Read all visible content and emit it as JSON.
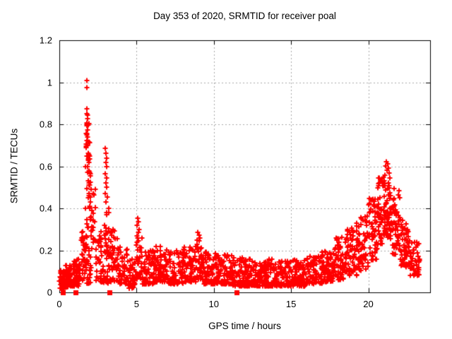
{
  "title": "Day 353 of 2020, SRMTID for receiver poal",
  "chart_data": {
    "type": "scatter",
    "title": "Day 353 of 2020, SRMTID for receiver poal",
    "xlabel": "GPS time / hours",
    "ylabel": "SRMTID / TECUs",
    "xlim": [
      0,
      24
    ],
    "ylim": [
      0,
      1.2
    ],
    "x_ticks": [
      0,
      5,
      10,
      15,
      20
    ],
    "y_ticks": [
      0,
      0.2,
      0.4,
      0.6,
      0.8,
      1,
      1.2
    ],
    "y_tick_labels": [
      "0",
      "0.2",
      "0.4",
      "0.6",
      "0.8",
      "1",
      "1.2"
    ],
    "x_tick_labels": [
      "0",
      "5",
      "10",
      "15",
      "20"
    ],
    "grid": true,
    "legend_position": "none",
    "background_color": "#ffffff",
    "border_color": "#000000",
    "grid_color": "#a8a8a8",
    "marker_color": "#ff0000",
    "series": [
      {
        "name": "srmtid-points",
        "marker": "plus",
        "color": "#ff0000",
        "description": "Dense scatter (~2000 pts) of SRMTID vs GPS time. Baseline ~0.05-0.15 TECUs all day; large spike to 1.01 near 1.8 h; secondary spike to 0.69 near 3.0 h; minor spike to 0.35 near 5.1 h; bump to 0.29 near 9 h; broad evening enhancement rising from 17 h to peak 0.62 near 21.2 h, decaying to ~0.12 by 23.3 h.",
        "feature_points": [
          [
            1.78,
            1.01
          ],
          [
            1.8,
            0.975
          ],
          [
            1.79,
            0.875
          ],
          [
            1.76,
            0.852
          ],
          [
            1.82,
            0.845
          ],
          [
            1.78,
            0.808
          ],
          [
            1.8,
            0.8
          ],
          [
            1.77,
            0.792
          ],
          [
            1.81,
            0.772
          ],
          [
            1.75,
            0.756
          ],
          [
            1.79,
            0.748
          ],
          [
            1.76,
            0.722
          ],
          [
            1.83,
            0.7
          ],
          [
            1.74,
            0.688
          ],
          [
            1.86,
            0.662
          ],
          [
            1.9,
            0.655
          ],
          [
            1.95,
            0.648
          ],
          [
            1.88,
            0.635
          ],
          [
            1.92,
            0.618
          ],
          [
            1.85,
            0.6
          ],
          [
            1.97,
            0.57
          ],
          [
            2.02,
            0.555
          ],
          [
            1.89,
            0.532
          ],
          [
            1.94,
            0.51
          ],
          [
            2.05,
            0.49
          ],
          [
            1.91,
            0.47
          ],
          [
            1.87,
            0.45
          ],
          [
            2.0,
            0.43
          ],
          [
            1.96,
            0.41
          ],
          [
            2.08,
            0.39
          ],
          [
            2.98,
            0.685
          ],
          [
            3.02,
            0.662
          ],
          [
            3.06,
            0.64
          ],
          [
            3.0,
            0.618
          ],
          [
            3.04,
            0.6
          ],
          [
            2.96,
            0.565
          ],
          [
            3.08,
            0.545
          ],
          [
            3.01,
            0.52
          ],
          [
            3.05,
            0.5
          ],
          [
            2.99,
            0.47
          ],
          [
            3.1,
            0.455
          ],
          [
            3.03,
            0.43
          ],
          [
            5.08,
            0.352
          ],
          [
            5.12,
            0.335
          ],
          [
            5.05,
            0.318
          ],
          [
            5.15,
            0.3
          ],
          [
            5.1,
            0.285
          ],
          [
            8.98,
            0.285
          ],
          [
            9.04,
            0.272
          ],
          [
            9.1,
            0.26
          ],
          [
            8.92,
            0.248
          ],
          [
            21.18,
            0.622
          ],
          [
            21.25,
            0.612
          ],
          [
            21.12,
            0.602
          ],
          [
            21.3,
            0.592
          ],
          [
            21.2,
            0.582
          ],
          [
            21.35,
            0.568
          ],
          [
            21.08,
            0.558
          ],
          [
            21.4,
            0.545
          ],
          [
            21.05,
            0.532
          ],
          [
            21.28,
            0.52
          ]
        ],
        "density_segments_format": [
          "t_start_h",
          "t_end_h",
          "n_points",
          "y_min",
          "y_max",
          "low_bias_exponent"
        ],
        "density_segments": [
          [
            0.02,
            0.35,
            30,
            0.02,
            0.12,
            1.5
          ],
          [
            0.35,
            0.9,
            60,
            0.025,
            0.13,
            1.6
          ],
          [
            0.9,
            1.35,
            55,
            0.03,
            0.16,
            1.6
          ],
          [
            1.35,
            1.68,
            30,
            0.05,
            0.3,
            1.4
          ],
          [
            1.68,
            2.02,
            35,
            0.18,
            0.86,
            1.05
          ],
          [
            1.65,
            2.05,
            25,
            0.04,
            0.22,
            1.3
          ],
          [
            2.02,
            2.35,
            24,
            0.1,
            0.5,
            1.3
          ],
          [
            2.35,
            2.88,
            40,
            0.05,
            0.3,
            1.6
          ],
          [
            2.88,
            3.22,
            30,
            0.12,
            0.42,
            1.2
          ],
          [
            2.85,
            3.25,
            15,
            0.04,
            0.15,
            1.4
          ],
          [
            3.25,
            3.8,
            42,
            0.05,
            0.3,
            1.5
          ],
          [
            3.8,
            4.4,
            48,
            0.04,
            0.22,
            1.6
          ],
          [
            4.4,
            4.92,
            40,
            0.02,
            0.16,
            1.6
          ],
          [
            4.92,
            5.35,
            35,
            0.06,
            0.27,
            1.4
          ],
          [
            5.35,
            6.2,
            70,
            0.04,
            0.2,
            1.7
          ],
          [
            6.2,
            7.0,
            70,
            0.05,
            0.22,
            1.6
          ],
          [
            7.0,
            8.0,
            85,
            0.04,
            0.2,
            1.7
          ],
          [
            8.0,
            8.85,
            70,
            0.05,
            0.22,
            1.6
          ],
          [
            8.85,
            9.35,
            40,
            0.06,
            0.26,
            1.4
          ],
          [
            9.35,
            10.2,
            72,
            0.04,
            0.2,
            1.7
          ],
          [
            10.2,
            11.2,
            85,
            0.04,
            0.18,
            1.7
          ],
          [
            11.2,
            12.0,
            65,
            0.03,
            0.17,
            1.7
          ],
          [
            12.0,
            13.0,
            85,
            0.03,
            0.16,
            1.7
          ],
          [
            13.0,
            14.0,
            85,
            0.03,
            0.16,
            1.7
          ],
          [
            14.0,
            15.0,
            85,
            0.03,
            0.15,
            1.7
          ],
          [
            15.0,
            16.0,
            85,
            0.03,
            0.16,
            1.7
          ],
          [
            16.0,
            17.0,
            85,
            0.04,
            0.18,
            1.6
          ],
          [
            17.0,
            17.8,
            70,
            0.05,
            0.2,
            1.5
          ],
          [
            17.8,
            18.6,
            65,
            0.06,
            0.27,
            1.4
          ],
          [
            18.6,
            19.3,
            60,
            0.08,
            0.33,
            1.4
          ],
          [
            19.3,
            20.0,
            60,
            0.1,
            0.38,
            1.3
          ],
          [
            20.0,
            20.6,
            55,
            0.14,
            0.45,
            1.2
          ],
          [
            20.6,
            21.0,
            45,
            0.2,
            0.55,
            1.1
          ],
          [
            21.0,
            21.55,
            55,
            0.25,
            0.52,
            1.0
          ],
          [
            21.55,
            22.05,
            50,
            0.18,
            0.5,
            1.2
          ],
          [
            22.05,
            22.6,
            55,
            0.12,
            0.35,
            1.3
          ],
          [
            22.6,
            23.3,
            55,
            0.08,
            0.25,
            1.4
          ]
        ]
      },
      {
        "name": "zero-value-flags",
        "marker": "filled-square",
        "color": "#ff0000",
        "points": [
          [
            0.22,
            0
          ],
          [
            1.05,
            0
          ],
          [
            3.24,
            0
          ],
          [
            11.46,
            0
          ]
        ]
      }
    ]
  }
}
